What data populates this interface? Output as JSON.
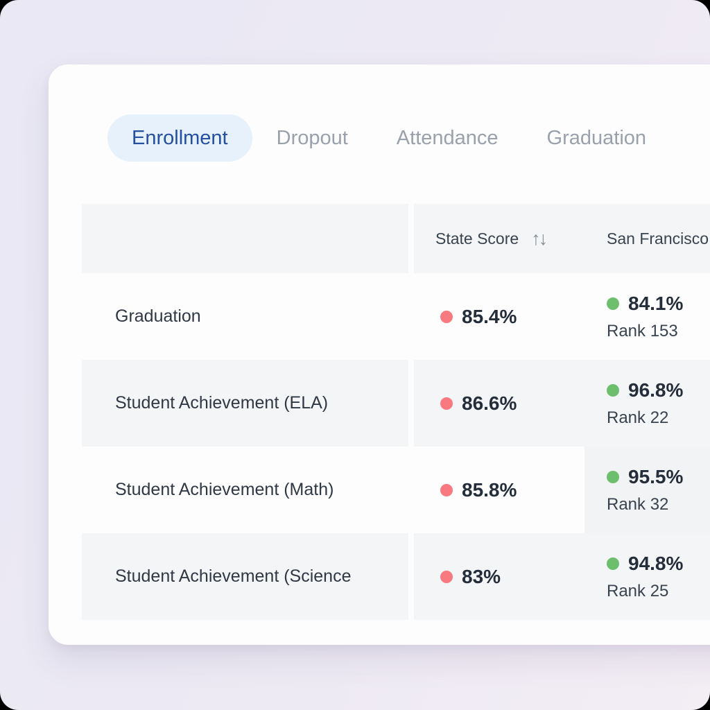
{
  "tabs": [
    {
      "label": "Enrollment",
      "active": true
    },
    {
      "label": "Dropout",
      "active": false
    },
    {
      "label": "Attendance",
      "active": false
    },
    {
      "label": "Graduation",
      "active": false
    }
  ],
  "table": {
    "columns": {
      "criteria_header": "",
      "state_header": "State Score",
      "sf_header": "San Francisco"
    },
    "sort_icon": "↑↓",
    "rows": [
      {
        "criteria": "Graduation",
        "state_score": "85.4%",
        "sf_score": "84.1%",
        "sf_rank": "Rank 153",
        "sf_highlight": false
      },
      {
        "criteria": "Student Achievement (ELA)",
        "state_score": "86.6%",
        "sf_score": "96.8%",
        "sf_rank": "Rank 22",
        "sf_highlight": false
      },
      {
        "criteria": "Student Achievement (Math)",
        "state_score": "85.8%",
        "sf_score": "95.5%",
        "sf_rank": "Rank 32",
        "sf_highlight": true
      },
      {
        "criteria": "Student Achievement (Science",
        "state_score": "83%",
        "sf_score": "94.8%",
        "sf_rank": "Rank 25",
        "sf_highlight": false
      }
    ]
  },
  "colors": {
    "tab_active_bg": "#e6f1fc",
    "tab_active_fg": "#24509f",
    "state_dot": "#f8797f",
    "sf_dot": "#6dbf6e"
  }
}
